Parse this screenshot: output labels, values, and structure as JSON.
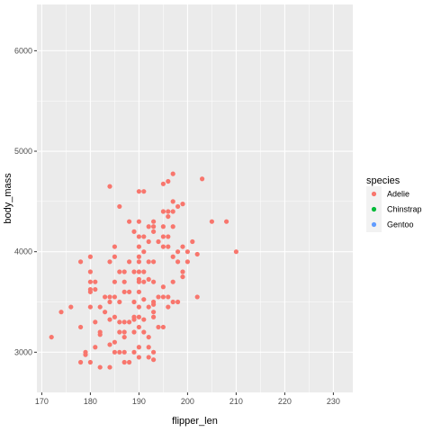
{
  "chart_data": {
    "type": "scatter",
    "xlabel": "flipper_len",
    "ylabel": "body_mass",
    "xlim": [
      169,
      234
    ],
    "ylim": [
      2600,
      6460
    ],
    "xticks": [
      170,
      180,
      190,
      200,
      210,
      220,
      230
    ],
    "yticks": [
      3000,
      4000,
      5000,
      6000
    ],
    "grid": true,
    "legend": {
      "title": "species",
      "placement": "right"
    },
    "series": [
      {
        "name": "Adelie",
        "color": "#F8766D",
        "points": [
          [
            172,
            3150
          ],
          [
            174,
            3400
          ],
          [
            176,
            3450
          ],
          [
            178,
            3900
          ],
          [
            178,
            3250
          ],
          [
            178,
            2900
          ],
          [
            179,
            2975
          ],
          [
            179,
            3000
          ],
          [
            180,
            3950
          ],
          [
            180,
            3800
          ],
          [
            180,
            3700
          ],
          [
            180,
            3600
          ],
          [
            180,
            3625
          ],
          [
            180,
            3450
          ],
          [
            180,
            2900
          ],
          [
            181,
            3700
          ],
          [
            181,
            3625
          ],
          [
            181,
            3300
          ],
          [
            181,
            3050
          ],
          [
            182,
            3175
          ],
          [
            182,
            3450
          ],
          [
            182,
            2850
          ],
          [
            182,
            3200
          ],
          [
            183,
            3550
          ],
          [
            183,
            3400
          ],
          [
            184,
            3550
          ],
          [
            184,
            3500
          ],
          [
            184,
            3900
          ],
          [
            184,
            3325
          ],
          [
            184,
            3075
          ],
          [
            184,
            2850
          ],
          [
            184,
            4650
          ],
          [
            185,
            4050
          ],
          [
            185,
            3950
          ],
          [
            185,
            3700
          ],
          [
            185,
            3550
          ],
          [
            185,
            3350
          ],
          [
            185,
            3100
          ],
          [
            185,
            3000
          ],
          [
            186,
            4450
          ],
          [
            186,
            3800
          ],
          [
            186,
            3500
          ],
          [
            186,
            3300
          ],
          [
            186,
            3200
          ],
          [
            186,
            3000
          ],
          [
            187,
            3800
          ],
          [
            187,
            3700
          ],
          [
            187,
            3600
          ],
          [
            187,
            3300
          ],
          [
            187,
            3200
          ],
          [
            187,
            3150
          ],
          [
            187,
            3000
          ],
          [
            187,
            2900
          ],
          [
            188,
            4300
          ],
          [
            188,
            3900
          ],
          [
            188,
            3600
          ],
          [
            188,
            3300
          ],
          [
            188,
            2900
          ],
          [
            189,
            4200
          ],
          [
            189,
            3800
          ],
          [
            189,
            3500
          ],
          [
            189,
            3350
          ],
          [
            189,
            3325
          ],
          [
            189,
            3200
          ],
          [
            189,
            3000
          ],
          [
            190,
            4600
          ],
          [
            190,
            4300
          ],
          [
            190,
            4150
          ],
          [
            190,
            4050
          ],
          [
            190,
            3950
          ],
          [
            190,
            3900
          ],
          [
            190,
            3800
          ],
          [
            190,
            3725
          ],
          [
            190,
            3700
          ],
          [
            190,
            3600
          ],
          [
            190,
            3450
          ],
          [
            190,
            3350
          ],
          [
            190,
            3250
          ],
          [
            190,
            3050
          ],
          [
            190,
            2950
          ],
          [
            191,
            4600
          ],
          [
            191,
            4150
          ],
          [
            191,
            4000
          ],
          [
            191,
            3800
          ],
          [
            191,
            3700
          ],
          [
            191,
            3525
          ],
          [
            191,
            3325
          ],
          [
            191,
            3200
          ],
          [
            192,
            4250
          ],
          [
            192,
            4100
          ],
          [
            192,
            3900
          ],
          [
            192,
            3725
          ],
          [
            192,
            3450
          ],
          [
            192,
            3150
          ],
          [
            192,
            3050
          ],
          [
            192,
            2950
          ],
          [
            193,
            4300
          ],
          [
            193,
            4250
          ],
          [
            193,
            4200
          ],
          [
            193,
            3900
          ],
          [
            193,
            3700
          ],
          [
            193,
            3500
          ],
          [
            193,
            3475
          ],
          [
            193,
            3400
          ],
          [
            193,
            3350
          ],
          [
            193,
            3000
          ],
          [
            193,
            2925
          ],
          [
            194,
            4100
          ],
          [
            194,
            3550
          ],
          [
            194,
            3250
          ],
          [
            195,
            4400
          ],
          [
            195,
            4250
          ],
          [
            195,
            4150
          ],
          [
            195,
            4050
          ],
          [
            195,
            3650
          ],
          [
            195,
            3550
          ],
          [
            195,
            3250
          ],
          [
            195,
            4675
          ],
          [
            196,
            4700
          ],
          [
            196,
            4350
          ],
          [
            196,
            4400
          ],
          [
            196,
            4150
          ],
          [
            196,
            4050
          ],
          [
            196,
            3550
          ],
          [
            196,
            3450
          ],
          [
            197,
            4775
          ],
          [
            197,
            4500
          ],
          [
            197,
            4400
          ],
          [
            197,
            4250
          ],
          [
            197,
            3950
          ],
          [
            197,
            3700
          ],
          [
            197,
            3500
          ],
          [
            198,
            4450
          ],
          [
            198,
            4000
          ],
          [
            198,
            3900
          ],
          [
            198,
            3500
          ],
          [
            199,
            4475
          ],
          [
            199,
            4050
          ],
          [
            199,
            3800
          ],
          [
            199,
            3750
          ],
          [
            200,
            4000
          ],
          [
            200,
            3900
          ],
          [
            201,
            4100
          ],
          [
            202,
            3975
          ],
          [
            202,
            3550
          ],
          [
            203,
            4725
          ],
          [
            205,
            4300
          ],
          [
            208,
            4300
          ],
          [
            210,
            4000
          ]
        ]
      },
      {
        "name": "Chinstrap",
        "color": "#00BA38",
        "points": []
      },
      {
        "name": "Gentoo",
        "color": "#619CFF",
        "points": []
      }
    ]
  }
}
